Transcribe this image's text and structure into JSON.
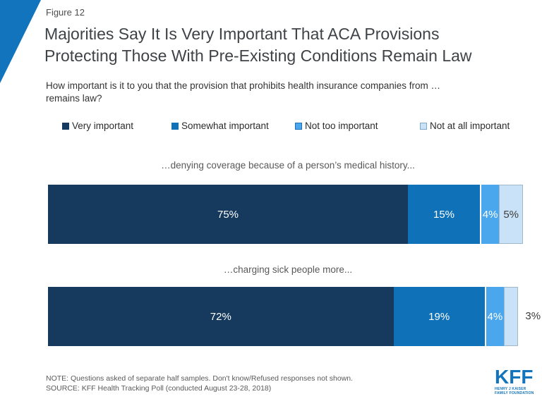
{
  "header": {
    "figure_label": "Figure 12",
    "title_line1": "Majorities Say It Is Very Important That ACA Provisions",
    "title_line2": "Protecting Those With Pre-Existing Conditions Remain Law",
    "subtitle_line1": "How important is it to you that the provision that prohibits health insurance companies from …",
    "subtitle_line2": "remains law?"
  },
  "chart_data": {
    "type": "bar",
    "subtype": "horizontal-stacked",
    "categories": [
      "…denying coverage because of a person’s medical history...",
      "…charging sick people more..."
    ],
    "series": [
      {
        "name": "Very important",
        "color": "#163A5D",
        "label_color": "#FFFFFF",
        "values": [
          75,
          72
        ]
      },
      {
        "name": "Somewhat important",
        "color": "#0F72B9",
        "label_color": "#FFFFFF",
        "values": [
          15,
          19
        ]
      },
      {
        "name": "Not too important",
        "color": "#4AA6ED",
        "label_color": "#FFFFFF",
        "values": [
          4,
          4
        ],
        "swatch_border": "#1C6FB4"
      },
      {
        "name": "Not at all important",
        "color": "#C9E2F7",
        "label_color": "#3C3C3C",
        "values": [
          5,
          3
        ],
        "border": "#9FB8CC",
        "swatch_border": "#7FA8C9"
      }
    ],
    "xlim": [
      0,
      100
    ],
    "value_suffix": "%",
    "legend_position": "top",
    "grid": false,
    "outside_value_labels": [
      {
        "row": 1,
        "series": 3,
        "text": "3%"
      }
    ]
  },
  "footer": {
    "note": "NOTE: Questions asked of separate half samples. Don't know/Refused responses not shown.",
    "source": "SOURCE: KFF Health Tracking Poll (conducted August 23-28, 2018)"
  },
  "logo": {
    "kff": "KFF",
    "tagline_line1": "HENRY J KAISER",
    "tagline_line2": "FAMILY FOUNDATION"
  },
  "accent_color": "#1274BC"
}
